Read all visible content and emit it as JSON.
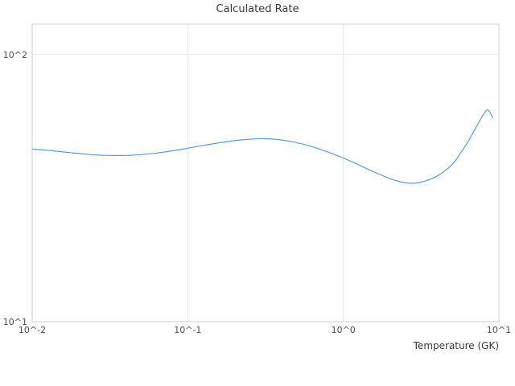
{
  "chart_data": {
    "type": "line",
    "title": "Calculated Rate",
    "xlabel": "Temperature (GK)",
    "ylabel": "",
    "x_scale": "log",
    "y_scale": "log",
    "xlim": [
      0.01,
      10
    ],
    "ylim": [
      10,
      130
    ],
    "grid": true,
    "legend": "none",
    "line_color": "#5b9bd5",
    "grid_color": "#e8e8e8",
    "border_color": "#d0d0d0",
    "x_ticks": [
      {
        "value": 0.01,
        "label": "10^-2"
      },
      {
        "value": 0.1,
        "label": "10^-1"
      },
      {
        "value": 1,
        "label": "10^0"
      },
      {
        "value": 10,
        "label": "10^1"
      }
    ],
    "y_ticks": [
      {
        "value": 10,
        "label": "10^1"
      },
      {
        "value": 100,
        "label": "10^2"
      }
    ],
    "series": [
      {
        "name": "Calculated Rate",
        "x": [
          0.01,
          0.0126,
          0.0158,
          0.02,
          0.0251,
          0.0316,
          0.0398,
          0.0501,
          0.0631,
          0.0794,
          0.1,
          0.126,
          0.158,
          0.2,
          0.251,
          0.316,
          0.398,
          0.501,
          0.631,
          0.794,
          1.0,
          1.26,
          1.58,
          2.0,
          2.24,
          2.51,
          2.82,
          3.16,
          3.98,
          5.01,
          5.62,
          6.31,
          7.08,
          7.94,
          8.51,
          9.12
        ],
        "y": [
          44.3,
          43.8,
          43.2,
          42.6,
          42.1,
          41.9,
          41.9,
          42.2,
          42.8,
          43.6,
          44.6,
          45.7,
          46.7,
          47.6,
          48.2,
          48.4,
          47.9,
          46.8,
          45.2,
          43.2,
          41.0,
          38.6,
          36.3,
          34.3,
          33.6,
          33.1,
          33.0,
          33.3,
          35.0,
          38.8,
          42.5,
          47.0,
          53.0,
          59.5,
          62.0,
          58.0
        ]
      }
    ]
  }
}
